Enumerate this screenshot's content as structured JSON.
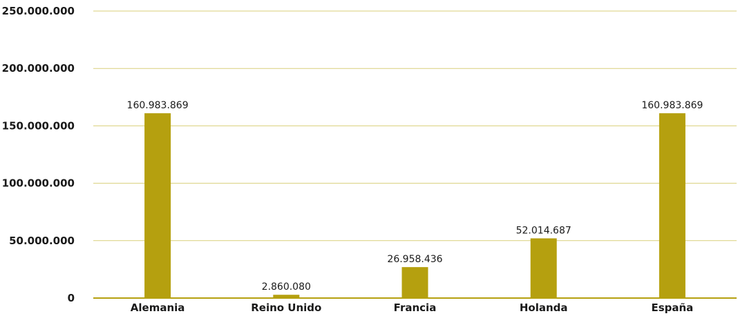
{
  "chart_data": {
    "type": "bar",
    "categories": [
      "Alemania",
      "Reino Unido",
      "Francia",
      "Holanda",
      "España"
    ],
    "values": [
      160983869,
      2860080,
      26958436,
      52014687,
      160983869
    ],
    "data_labels": [
      "160.983.869",
      "2.860.080",
      "26.958.436",
      "52.014.687",
      "160.983.869"
    ],
    "title": "",
    "xlabel": "",
    "ylabel": "",
    "ylim": [
      0,
      250000000
    ],
    "yticks": [
      0,
      50000000,
      100000000,
      150000000,
      200000000,
      250000000
    ],
    "ytick_labels": [
      "0",
      "50.000.000",
      "100.000.000",
      "150.000.000",
      "200.000.000",
      "250.000.000"
    ],
    "grid": true,
    "legend": "none",
    "colors": {
      "bar": "#b5a00f",
      "grid": "#d9cf7a",
      "axis": "#b5a00f"
    }
  }
}
